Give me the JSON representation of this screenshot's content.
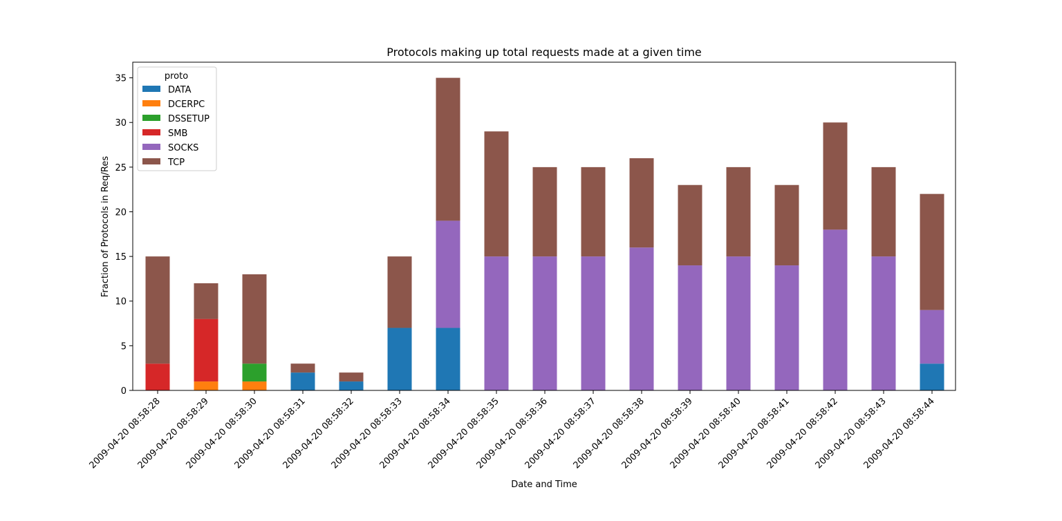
{
  "chart_data": {
    "type": "bar",
    "stacked": true,
    "title": "Protocols making up total requests made at a given time",
    "xlabel": "Date and Time",
    "ylabel": "Fraction of Protocols in Req/Res",
    "ylim": [
      0,
      36.75
    ],
    "yticks": [
      0,
      5,
      10,
      15,
      20,
      25,
      30,
      35
    ],
    "grid": false,
    "legend": {
      "title": "proto",
      "placement": "top-left"
    },
    "categories": [
      "2009-04-20 08:58:28",
      "2009-04-20 08:58:29",
      "2009-04-20 08:58:30",
      "2009-04-20 08:58:31",
      "2009-04-20 08:58:32",
      "2009-04-20 08:58:33",
      "2009-04-20 08:58:34",
      "2009-04-20 08:58:35",
      "2009-04-20 08:58:36",
      "2009-04-20 08:58:37",
      "2009-04-20 08:58:38",
      "2009-04-20 08:58:39",
      "2009-04-20 08:58:40",
      "2009-04-20 08:58:41",
      "2009-04-20 08:58:42",
      "2009-04-20 08:58:43",
      "2009-04-20 08:58:44"
    ],
    "series": [
      {
        "name": "DATA",
        "color": "#1f77b4",
        "values": [
          0,
          0,
          0,
          2,
          1,
          7,
          7,
          0,
          0,
          0,
          0,
          0,
          0,
          0,
          0,
          0,
          3
        ]
      },
      {
        "name": "DCERPC",
        "color": "#ff7f0e",
        "values": [
          0,
          1,
          1,
          0,
          0,
          0,
          0,
          0,
          0,
          0,
          0,
          0,
          0,
          0,
          0,
          0,
          0
        ]
      },
      {
        "name": "DSSETUP",
        "color": "#2ca02c",
        "values": [
          0,
          0,
          2,
          0,
          0,
          0,
          0,
          0,
          0,
          0,
          0,
          0,
          0,
          0,
          0,
          0,
          0
        ]
      },
      {
        "name": "SMB",
        "color": "#d62728",
        "values": [
          3,
          7,
          0,
          0,
          0,
          0,
          0,
          0,
          0,
          0,
          0,
          0,
          0,
          0,
          0,
          0,
          0
        ]
      },
      {
        "name": "SOCKS",
        "color": "#9467bd",
        "values": [
          0,
          0,
          0,
          0,
          0,
          0,
          12,
          15,
          15,
          15,
          16,
          14,
          15,
          14,
          18,
          15,
          6
        ]
      },
      {
        "name": "TCP",
        "color": "#8c564b",
        "values": [
          12,
          4,
          10,
          1,
          1,
          8,
          16,
          14,
          10,
          10,
          10,
          9,
          10,
          9,
          12,
          10,
          13
        ]
      }
    ]
  }
}
